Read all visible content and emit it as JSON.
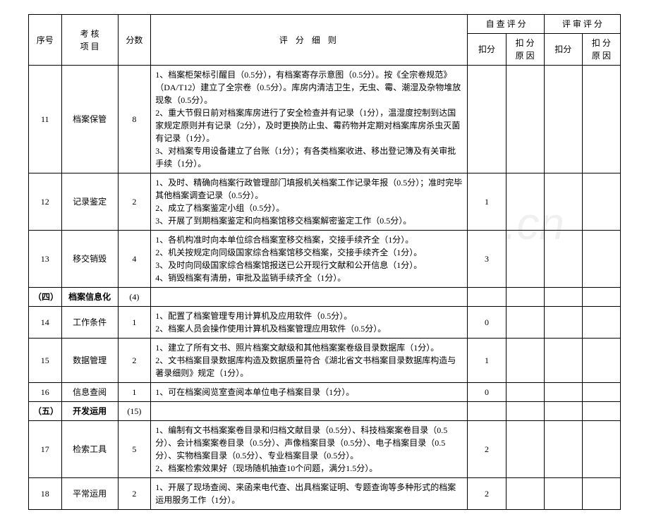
{
  "header": {
    "seq": "序号",
    "item": "考 核\n项 目",
    "score": "分数",
    "detail": "评  分  细  则",
    "self_group": "自 查 评 分",
    "review_group": "评 审 评 分",
    "deduct": "扣分",
    "reason": "扣 分 原 因"
  },
  "rows": [
    {
      "seq": "11",
      "item": "档案保管",
      "score": "8",
      "detail": "1、档案柜架标引醒目（0.5分），有档案寄存示意图（0.5分）。按《全宗卷规范》（DA/T12）建立了全宗卷（0.5分）。库房内清洁卫生，无虫、霉、潮湿及杂物堆放现象（0.5分）。\n2、重大节假日前对档案库房进行了安全检查并有记录（1分），温湿度控制到达国家规定原则并有记录（2分），及时更换防止虫、霉药物并定期对档案库房杀虫灭菌有记录（1分）。\n3、对档案专用设备建立了台账（1分）；有各类档案收进、移出登记簿及有关审批手续（1分）。",
      "deduct": "",
      "reason": ""
    },
    {
      "seq": "12",
      "item": "记录鉴定",
      "score": "2",
      "detail": "1、及时、精确向档案行政管理部门填报机关档案工作记录年报（0.5分）；准时完毕其他档案调查记录（0.5分）。\n2、成立了档案鉴定小组（0.5分）。\n3、开展了到期档案鉴定和向档案馆移交档案解密鉴定工作（0.5分）。",
      "deduct": "1",
      "reason": ""
    },
    {
      "seq": "13",
      "item": "移交销毁",
      "score": "4",
      "detail": "1、各机构准时向本单位综合档案室移交档案，交接手续齐全（1分）。\n2、机关按规定向同级国家综合档案馆移交档案，交接手续齐全（1分）。\n3、及时向同级国家综合档案馆报送已公开现行文献和公开信息（1分）。\n4、销毁档案有清册，审批及监销手续齐全（1分）。",
      "deduct": "3",
      "reason": ""
    },
    {
      "seq": "（四）",
      "item": "档案信息化",
      "score": "(4)",
      "detail": "",
      "deduct": "",
      "reason": "",
      "bold": true
    },
    {
      "seq": "14",
      "item": "工作条件",
      "score": "1",
      "detail": "1、配置了档案管理专用计算机及应用软件（0.5分）。\n2、档案人员会操作使用计算机及档案管理应用软件（0.5分）。",
      "deduct": "0",
      "reason": ""
    },
    {
      "seq": "15",
      "item": "数据管理",
      "score": "2",
      "detail": "1、建立了所有文书、照片档案文献级和其他档案案卷级目录数据库（1分）。\n2、文书档案目录数据库构造及数据质量符合《湖北省文书档案目录数据库构造与著录细则》规定（1分）。",
      "deduct": "1",
      "reason": ""
    },
    {
      "seq": "16",
      "item": "信息查阅",
      "score": "1",
      "detail": "1、可在档案阅览室查阅本单位电子档案目录（1分）。",
      "deduct": "0",
      "reason": ""
    },
    {
      "seq": "（五）",
      "item": "开发运用",
      "score": "(15)",
      "detail": "",
      "deduct": "",
      "reason": "",
      "bold": true
    },
    {
      "seq": "17",
      "item": "检索工具",
      "score": "5",
      "detail": "1、编制有文书档案案卷目录和归档文献目录（0.5分）、科技档案案卷目录（0.5分）、会计档案案卷目录（0.5分）、声像档案目录（0.5分）、电子档案目录（0.5分）、实物档案目录（0.5分）、专业档案目录（0.5分）。\n2、档案检索效果好（现场随机抽查10个问题，满分1.5分）。",
      "deduct": "2",
      "reason": ""
    },
    {
      "seq": "18",
      "item": "平常运用",
      "score": "2",
      "detail": "1、开展了现场查阅、来函来电代查、出具档案证明、专题查询等多种形式的档案运用服务工作（1分）。",
      "deduct": "2",
      "reason": ""
    }
  ],
  "watermark": ".cn"
}
